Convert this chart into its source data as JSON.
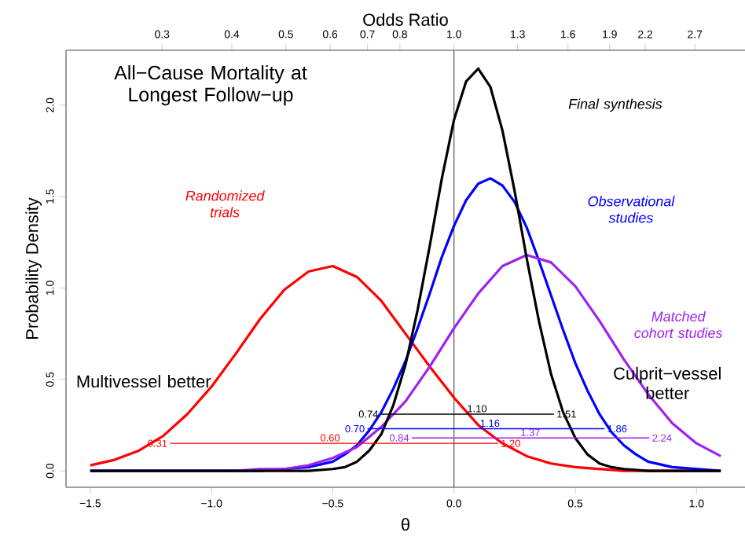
{
  "chart_data": {
    "type": "line",
    "title": "All−Cause Mortality at Longest Follow−up",
    "xlabel": "θ",
    "ylabel": "Probability Density",
    "x2label": "Odds Ratio",
    "xlim": [
      -1.6,
      1.2
    ],
    "ylim": [
      -0.09,
      2.3
    ],
    "xticks": [
      {
        "value": -1.5,
        "label": "−1.5"
      },
      {
        "value": -1.0,
        "label": "−1.0"
      },
      {
        "value": -0.5,
        "label": "−0.5"
      },
      {
        "value": 0,
        "label": "0.0"
      },
      {
        "value": 0.5,
        "label": "0.5"
      },
      {
        "value": 1.0,
        "label": "1.0"
      }
    ],
    "yticks": [
      {
        "value": 0,
        "label": "0.0"
      },
      {
        "value": 0.5,
        "label": "0.5"
      },
      {
        "value": 1.0,
        "label": "1.0"
      },
      {
        "value": 1.5,
        "label": "1.5"
      },
      {
        "value": 2.0,
        "label": "2.0"
      }
    ],
    "log": "x2",
    "x2lim": [
      0.2019,
      3.32
    ],
    "x2ticks": [
      0.3,
      0.4,
      0.5,
      0.6,
      0.7,
      0.8,
      {
        "value": 1,
        "label": "1.0"
      },
      1.3,
      1.6,
      1.9,
      2.2,
      2.7
    ],
    "ref_lines": [
      {
        "axis": "x",
        "value": 0,
        "color": "#555555"
      }
    ],
    "annotations": [
      "Multivessel better",
      "Culprit−vessel better",
      {
        "text": "0.74",
        "x": -0.301,
        "y": 0.31
      },
      {
        "text": "1.10",
        "x": 0.095,
        "y": 0.31
      },
      {
        "text": "1.51",
        "x": 0.412,
        "y": 0.31
      },
      {
        "text": "0.70",
        "x": -0.357,
        "y": 0.23
      },
      {
        "text": "1.16",
        "x": 0.148,
        "y": 0.23
      },
      {
        "text": "1.86",
        "x": 0.621,
        "y": 0.23
      },
      {
        "text": "0.84",
        "x": -0.174,
        "y": 0.18
      },
      {
        "text": "1.37",
        "x": 0.315,
        "y": 0.18
      },
      {
        "text": "2.24",
        "x": 0.806,
        "y": 0.18
      },
      {
        "text": "0.31",
        "x": -1.171,
        "y": 0.15
      },
      {
        "text": "0.60",
        "x": -0.511,
        "y": 0.15
      },
      {
        "text": "1.20",
        "x": 0.182,
        "y": 0.15
      }
    ],
    "series": [
      {
        "name": "Randomized trials",
        "color": "#ff0000",
        "x": [
          -1.5,
          -1.4,
          -1.3,
          -1.2,
          -1.1,
          -1.0,
          -0.9,
          -0.8,
          -0.7,
          -0.6,
          -0.5,
          -0.4,
          -0.3,
          -0.2,
          -0.1,
          0,
          0.1,
          0.2,
          0.3,
          0.4,
          0.5,
          0.6,
          0.7,
          1.1
        ],
        "values": [
          0.03,
          0.06,
          0.11,
          0.19,
          0.31,
          0.46,
          0.64,
          0.83,
          0.99,
          1.09,
          1.12,
          1.06,
          0.93,
          0.75,
          0.57,
          0.4,
          0.25,
          0.15,
          0.08,
          0.04,
          0.02,
          0.01,
          0,
          0
        ]
      },
      {
        "name": "Observational studies",
        "color": "#0000ff",
        "x": [
          -1.5,
          -0.8,
          -0.7,
          -0.6,
          -0.5,
          -0.45,
          -0.4,
          -0.35,
          -0.3,
          -0.25,
          -0.2,
          -0.15,
          -0.1,
          -0.05,
          0,
          0.05,
          0.1,
          0.15,
          0.2,
          0.25,
          0.3,
          0.35,
          0.4,
          0.45,
          0.5,
          0.55,
          0.6,
          0.65,
          0.7,
          0.75,
          0.8,
          0.9,
          1.0,
          1.1
        ],
        "values": [
          0,
          0,
          0.01,
          0.02,
          0.05,
          0.09,
          0.14,
          0.22,
          0.32,
          0.45,
          0.6,
          0.78,
          0.97,
          1.17,
          1.34,
          1.48,
          1.57,
          1.6,
          1.56,
          1.47,
          1.33,
          1.15,
          0.96,
          0.77,
          0.59,
          0.44,
          0.31,
          0.21,
          0.14,
          0.09,
          0.05,
          0.02,
          0.01,
          0
        ]
      },
      {
        "name": "Matched cohort studies",
        "color": "#a020f0",
        "x": [
          -1.5,
          -0.9,
          -0.8,
          -0.7,
          -0.6,
          -0.5,
          -0.4,
          -0.3,
          -0.2,
          -0.1,
          0,
          0.1,
          0.2,
          0.3,
          0.4,
          0.5,
          0.6,
          0.7,
          0.8,
          0.9,
          1.0,
          1.1
        ],
        "values": [
          0,
          0,
          0.01,
          0.01,
          0.03,
          0.07,
          0.13,
          0.24,
          0.38,
          0.57,
          0.78,
          0.97,
          1.12,
          1.18,
          1.14,
          1.01,
          0.82,
          0.61,
          0.42,
          0.26,
          0.15,
          0.08
        ]
      },
      {
        "name": "Final synthesis",
        "color": "#000000",
        "x": [
          -1.5,
          -0.6,
          -0.5,
          -0.45,
          -0.4,
          -0.35,
          -0.3,
          -0.25,
          -0.2,
          -0.15,
          -0.1,
          -0.05,
          0,
          0.05,
          0.1,
          0.15,
          0.2,
          0.25,
          0.3,
          0.35,
          0.4,
          0.45,
          0.5,
          0.55,
          0.6,
          0.65,
          0.7,
          0.8,
          1.1
        ],
        "values": [
          0,
          0,
          0.01,
          0.02,
          0.05,
          0.11,
          0.2,
          0.36,
          0.58,
          0.88,
          1.23,
          1.6,
          1.92,
          2.13,
          2.2,
          2.1,
          1.86,
          1.53,
          1.16,
          0.82,
          0.53,
          0.32,
          0.18,
          0.09,
          0.04,
          0.02,
          0.01,
          0,
          0
        ]
      },
      {
        "color": "#000000",
        "x": [
          -0.301,
          0.095,
          0.412
        ],
        "values": [
          0.31,
          0.31,
          0.31
        ]
      },
      {
        "color": "#0000ff",
        "x": [
          -0.357,
          0.148,
          0.621
        ],
        "values": [
          0.23,
          0.23,
          0.23
        ]
      },
      {
        "color": "#a020f0",
        "x": [
          -0.174,
          0.315,
          0.806
        ],
        "values": [
          0.18,
          0.18,
          0.18
        ]
      },
      {
        "color": "#ff0000",
        "x": [
          -1.171,
          -0.511,
          0.182
        ],
        "values": [
          0.15,
          0.15,
          0.15
        ]
      }
    ]
  }
}
